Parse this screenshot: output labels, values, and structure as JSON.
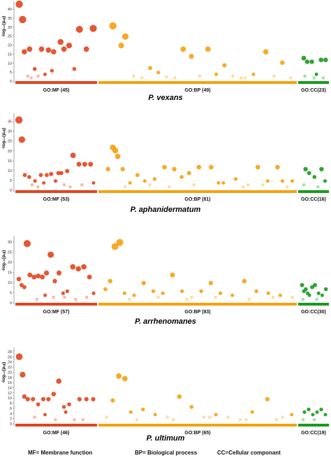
{
  "colors": {
    "MF": "#e0451f",
    "BP": "#f5a10f",
    "CC": "#1a9a1f",
    "axis": "#666666"
  },
  "footer": {
    "mf": "MF= Membrane function",
    "bp": "BP= Biological process",
    "cc": "CC=Cellular componant"
  },
  "chart_data": [
    {
      "type": "scatter",
      "title": "P. vexans",
      "ylabel": "-log₁₀(pₐₗⱼ)",
      "yticks": [
        0,
        5,
        10,
        15,
        20,
        25,
        30,
        35,
        40
      ],
      "ylim": [
        0,
        42
      ],
      "categories": [
        "GO:MF (45)",
        "GO:BP (49)",
        "GO:CC(23)"
      ],
      "series": [
        {
          "group": "MF",
          "x": [
            1,
            3,
            4,
            7,
            10,
            14,
            18,
            21,
            25,
            27,
            30,
            33,
            36,
            40,
            44,
            12,
            16,
            20,
            8,
            6
          ],
          "y": [
            42,
            33.5,
            15.5,
            17,
            6,
            17,
            16.5,
            15.5,
            21,
            17,
            19,
            6,
            28,
            17,
            28.5,
            2,
            3,
            5,
            1,
            2
          ]
        },
        {
          "group": "BP",
          "x": [
            3,
            5,
            6,
            12,
            14,
            18,
            20,
            22,
            26,
            30,
            32,
            34,
            37,
            40,
            42,
            8,
            10,
            16,
            24,
            28,
            35,
            44,
            46
          ],
          "y": [
            30,
            19,
            24,
            6.5,
            4,
            1,
            17,
            13,
            17,
            8,
            2,
            1,
            3,
            15.5,
            2,
            2,
            1,
            1.5,
            2,
            3,
            1,
            9.5,
            1
          ]
        },
        {
          "group": "CC",
          "x": [
            3,
            6,
            10,
            14,
            18,
            22,
            4,
            12,
            20
          ],
          "y": [
            12,
            10,
            10,
            3,
            11,
            11,
            2,
            1,
            1
          ]
        }
      ]
    },
    {
      "type": "scatter",
      "title": "P. aphanidermatum",
      "ylabel": "-log₁₀(pₐₗⱼ)",
      "yticks": [
        0,
        5,
        10,
        15,
        20,
        25,
        30,
        35
      ],
      "ylim": [
        0,
        37
      ],
      "categories": [
        "GO:MF (53)",
        "GO:BP (81)",
        "GO:CC(16)"
      ],
      "series": [
        {
          "group": "MF",
          "x": [
            1,
            3,
            5,
            8,
            12,
            16,
            20,
            23,
            26,
            30,
            34,
            38,
            42,
            46,
            50,
            52,
            10,
            14,
            18,
            28,
            32,
            36,
            44
          ],
          "y": [
            35,
            25,
            7,
            6,
            4,
            7,
            7,
            7.5,
            4,
            8,
            9,
            17,
            12.5,
            12.5,
            12.5,
            3,
            2,
            1,
            3,
            8,
            2,
            1,
            2
          ]
        },
        {
          "group": "BP",
          "x": [
            3,
            5,
            6,
            7,
            9,
            12,
            15,
            18,
            22,
            26,
            30,
            33,
            36,
            40,
            45,
            50,
            55,
            60,
            64,
            68,
            72,
            76,
            78,
            10,
            20,
            28,
            38,
            48,
            58,
            66,
            74
          ],
          "y": [
            10,
            21,
            19.5,
            16.5,
            10,
            3,
            7,
            4,
            5,
            11,
            10,
            6,
            8,
            11,
            11,
            3,
            5,
            2,
            11,
            4,
            11,
            1,
            4,
            1,
            2,
            1,
            2,
            3,
            1,
            2,
            4
          ]
        },
        {
          "group": "CC",
          "x": [
            3,
            5,
            8,
            12,
            14,
            2,
            10
          ],
          "y": [
            10,
            8,
            6,
            10,
            4,
            2,
            1
          ]
        }
      ]
    },
    {
      "type": "scatter",
      "title": "P. arrhenomanes",
      "ylabel": "-log₁₀(pₐₗⱼ)",
      "yticks": [
        0,
        5,
        10,
        15,
        20,
        25,
        30
      ],
      "ylim": [
        0,
        31
      ],
      "categories": [
        "GO:MF (57)",
        "GO:BP (83)",
        "GO:CC(30)"
      ],
      "series": [
        {
          "group": "MF",
          "x": [
            1,
            3,
            5,
            7,
            9,
            12,
            15,
            18,
            21,
            24,
            27,
            30,
            33,
            36,
            40,
            44,
            48,
            52,
            55,
            14,
            20,
            26,
            34,
            42,
            50
          ],
          "y": [
            11,
            8,
            7,
            28.5,
            13,
            12,
            12.5,
            12,
            14,
            23,
            10,
            14,
            4,
            5,
            17,
            16,
            17,
            12,
            4,
            1,
            3,
            2,
            2,
            1,
            2
          ]
        },
        {
          "group": "BP",
          "x": [
            2,
            4,
            6,
            8,
            10,
            14,
            18,
            22,
            26,
            30,
            34,
            38,
            42,
            46,
            50,
            55,
            60,
            65,
            70,
            75,
            80,
            12,
            24,
            36,
            48,
            62,
            72
          ],
          "y": [
            6,
            10,
            27,
            29,
            4,
            3,
            9,
            5,
            4,
            13,
            5,
            2,
            5,
            9,
            4,
            3,
            10,
            5,
            4,
            3,
            2,
            1,
            2,
            1,
            2,
            1,
            2
          ]
        },
        {
          "group": "CC",
          "x": [
            2,
            4,
            6,
            8,
            10,
            13,
            16,
            20,
            24,
            28,
            3,
            18
          ],
          "y": [
            8,
            5,
            6,
            4,
            3,
            7,
            8,
            4,
            3,
            6,
            1,
            1
          ]
        }
      ]
    },
    {
      "type": "scatter",
      "title": "P. ultimum",
      "ylabel": "-log₁₀(pₐₗⱼ)",
      "yticks": [
        0,
        2,
        4,
        6,
        8,
        10,
        12,
        14,
        16,
        18,
        20,
        22,
        24,
        26,
        28
      ],
      "ylim": [
        0,
        28
      ],
      "categories": [
        "GO:MF (46)",
        "GO:BP (65)",
        "GO:CC(19)"
      ],
      "series": [
        {
          "group": "MF",
          "x": [
            1,
            3,
            4,
            6,
            9,
            12,
            15,
            18,
            21,
            24,
            27,
            30,
            33,
            36,
            40,
            44,
            10,
            16,
            22,
            28,
            38
          ],
          "y": [
            25.5,
            18.5,
            10,
            9,
            9,
            7,
            9,
            9,
            11,
            16,
            6,
            7,
            1,
            9,
            9,
            9,
            2,
            3,
            1,
            4,
            1
          ]
        },
        {
          "group": "BP",
          "x": [
            2,
            4,
            6,
            8,
            10,
            14,
            18,
            22,
            26,
            30,
            34,
            38,
            42,
            46,
            50,
            55,
            60,
            63,
            12,
            24,
            36,
            48,
            58
          ],
          "y": [
            2,
            8.5,
            18,
            17,
            4,
            5,
            3,
            2,
            10,
            6,
            2,
            3,
            2,
            1,
            4,
            9,
            2,
            3,
            1,
            1,
            2,
            1,
            1
          ]
        },
        {
          "group": "CC",
          "x": [
            3,
            6,
            9,
            12,
            15,
            18,
            2,
            10
          ],
          "y": [
            4,
            5,
            3,
            4,
            5,
            3,
            1,
            1
          ]
        }
      ]
    }
  ]
}
